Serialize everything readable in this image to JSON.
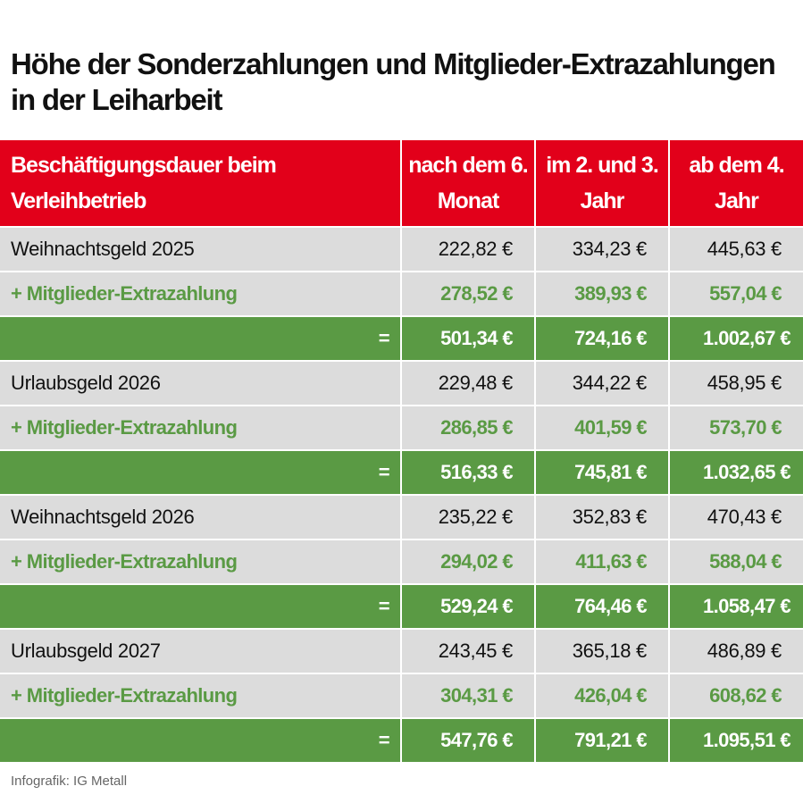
{
  "title": "Höhe der Sonderzahlungen und Mitglieder-Extrazahlungen in der Leiharbeit",
  "colors": {
    "header_red": "#e2001a",
    "row_gray": "#dcdcdc",
    "green": "#5a9a44"
  },
  "table": {
    "headers": [
      "Beschäftigungsdauer beim Verleihbetrieb",
      "nach dem 6. Monat",
      "im 2. und 3. Jahr",
      "ab dem 4. Jahr"
    ],
    "rows": [
      {
        "type": "base",
        "cells": [
          "Weihnachtsgeld 2025",
          "222,82 €",
          "334,23 €",
          "445,63 €"
        ]
      },
      {
        "type": "extra",
        "cells": [
          "+ Mitglieder-Extrazahlung",
          "278,52 €",
          "389,93 €",
          "557,04 €"
        ]
      },
      {
        "type": "sum",
        "cells": [
          "=",
          "501,34 €",
          "724,16 €",
          "1.002,67 €"
        ]
      },
      {
        "type": "base",
        "cells": [
          "Urlaubsgeld 2026",
          "229,48 €",
          "344,22 €",
          "458,95 €"
        ]
      },
      {
        "type": "extra",
        "cells": [
          "+ Mitglieder-Extrazahlung",
          "286,85 €",
          "401,59 €",
          "573,70 €"
        ]
      },
      {
        "type": "sum",
        "cells": [
          "=",
          "516,33 €",
          "745,81 €",
          "1.032,65 €"
        ]
      },
      {
        "type": "base",
        "cells": [
          "Weihnachtsgeld 2026",
          "235,22 €",
          "352,83 €",
          "470,43 €"
        ]
      },
      {
        "type": "extra",
        "cells": [
          "+ Mitglieder-Extrazahlung",
          "294,02 €",
          "411,63 €",
          "588,04 €"
        ]
      },
      {
        "type": "sum",
        "cells": [
          "=",
          "529,24 €",
          "764,46 €",
          "1.058,47 €"
        ]
      },
      {
        "type": "base",
        "cells": [
          "Urlaubsgeld 2027",
          "243,45 €",
          "365,18 €",
          "486,89 €"
        ]
      },
      {
        "type": "extra",
        "cells": [
          "+ Mitglieder-Extrazahlung",
          "304,31 €",
          "426,04 €",
          "608,62 €"
        ]
      },
      {
        "type": "sum",
        "cells": [
          "=",
          "547,76 €",
          "791,21 €",
          "1.095,51 €"
        ]
      }
    ]
  },
  "footer": "Infografik: IG Metall"
}
